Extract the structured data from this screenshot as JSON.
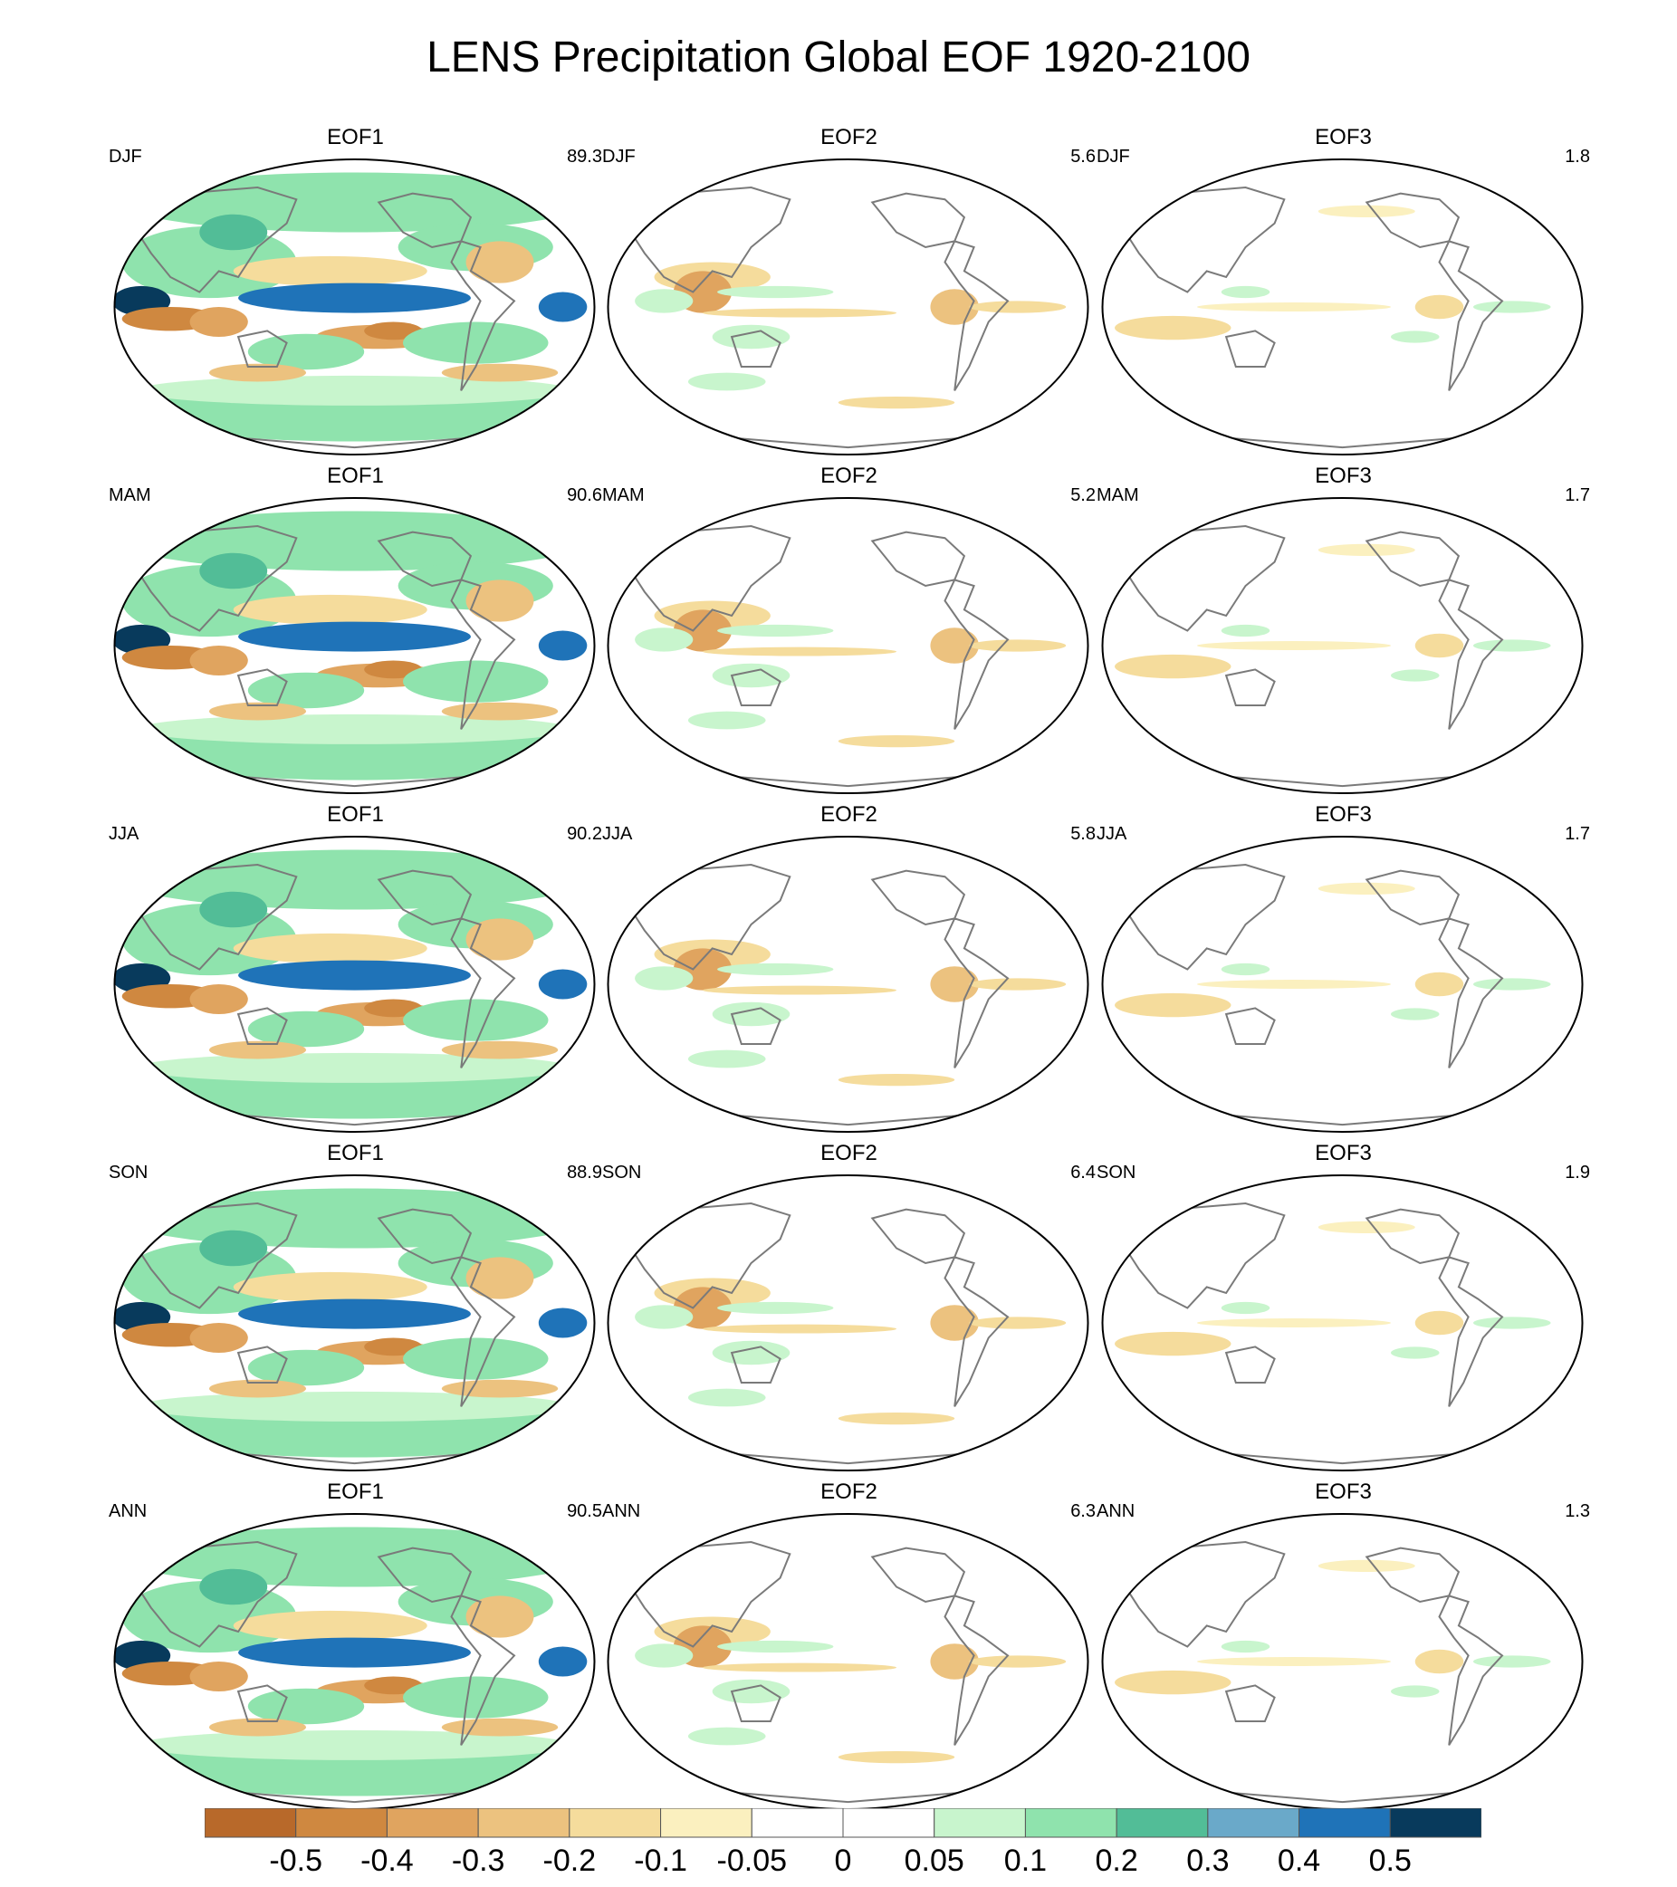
{
  "title": "LENS Precipitation Global EOF 1920-2100",
  "rows": [
    {
      "season": "DJF",
      "panels": [
        {
          "eof": "EOF1",
          "pct": "89.3"
        },
        {
          "eof": "EOF2",
          "pct": "5.6"
        },
        {
          "eof": "EOF3",
          "pct": "1.8"
        }
      ]
    },
    {
      "season": "MAM",
      "panels": [
        {
          "eof": "EOF1",
          "pct": "90.6"
        },
        {
          "eof": "EOF2",
          "pct": "5.2"
        },
        {
          "eof": "EOF3",
          "pct": "1.7"
        }
      ]
    },
    {
      "season": "JJA",
      "panels": [
        {
          "eof": "EOF1",
          "pct": "90.2"
        },
        {
          "eof": "EOF2",
          "pct": "5.8"
        },
        {
          "eof": "EOF3",
          "pct": "1.7"
        }
      ]
    },
    {
      "season": "SON",
      "panels": [
        {
          "eof": "EOF1",
          "pct": "88.9"
        },
        {
          "eof": "EOF2",
          "pct": "6.4"
        },
        {
          "eof": "EOF3",
          "pct": "1.9"
        }
      ]
    },
    {
      "season": "ANN",
      "panels": [
        {
          "eof": "EOF1",
          "pct": "90.5"
        },
        {
          "eof": "EOF2",
          "pct": "6.3"
        },
        {
          "eof": "EOF3",
          "pct": "1.3"
        }
      ]
    }
  ],
  "colorbar": {
    "labels": [
      "-0.5",
      "-0.4",
      "-0.3",
      "-0.2",
      "-0.1",
      "-0.05",
      "0",
      "0.05",
      "0.1",
      "0.2",
      "0.3",
      "0.4",
      "0.5"
    ],
    "colors": [
      "#b8692a",
      "#cf8840",
      "#e0a45f",
      "#ecc27f",
      "#f5dc9c",
      "#fbf0bf",
      "#ffffff",
      "#ffffff",
      "#c8f5cd",
      "#8fe3ad",
      "#52bd97",
      "#6aa9c9",
      "#1f73b8",
      "#083a5c"
    ]
  }
}
